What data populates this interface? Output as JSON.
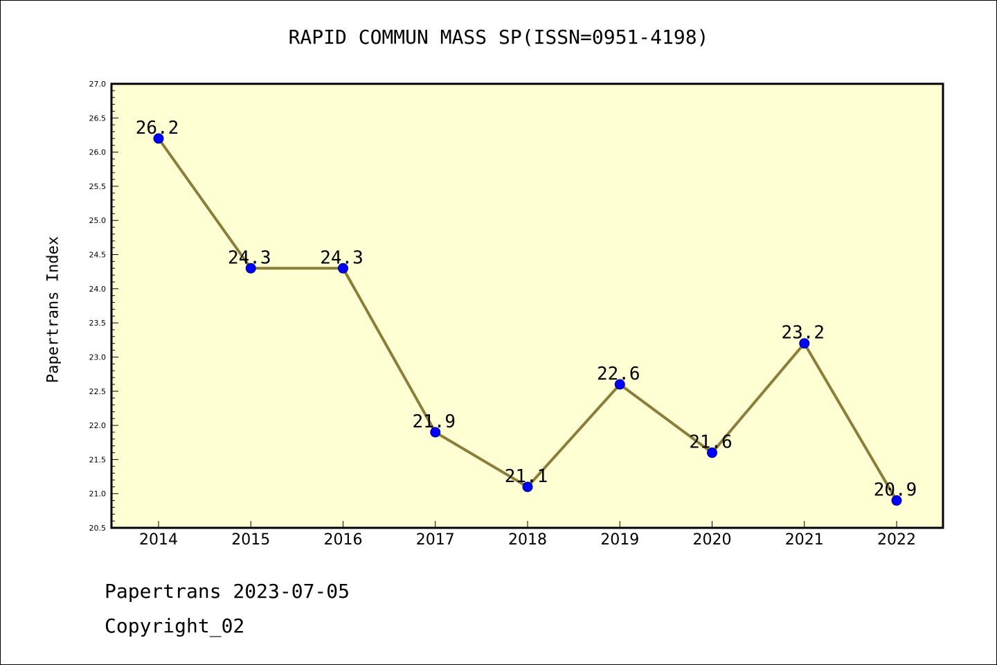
{
  "chart_data": {
    "type": "line",
    "title": "RAPID COMMUN MASS SP(ISSN=0951-4198)",
    "xlabel": "",
    "ylabel": "Papertrans Index",
    "categories": [
      "2014",
      "2015",
      "2016",
      "2017",
      "2018",
      "2019",
      "2020",
      "2021",
      "2022"
    ],
    "series": [
      {
        "values": [
          26.2,
          24.3,
          24.3,
          21.9,
          21.1,
          22.6,
          21.6,
          23.2,
          20.9
        ],
        "labels": [
          "26.2",
          "24.3",
          "24.3",
          "21.9",
          "21.1",
          "22.6",
          "21.6",
          "23.2",
          "20.9"
        ]
      }
    ],
    "ylim": [
      20.5,
      27.0
    ],
    "yticks": [
      "20.5",
      "21.0",
      "21.5",
      "22.0",
      "22.5",
      "23.0",
      "23.5",
      "24.0",
      "24.5",
      "25.0",
      "25.5",
      "26.0",
      "26.5",
      "27.0"
    ],
    "grid": false,
    "legend": "none",
    "colors": {
      "plot_background": "#ffffd4",
      "line": "#8b7d3a",
      "marker": "#0000ff",
      "marker_edge": "#000080",
      "axes": "#000000"
    }
  },
  "footer": {
    "line1": "Papertrans 2023-07-05",
    "line2": "Copyright_02"
  }
}
